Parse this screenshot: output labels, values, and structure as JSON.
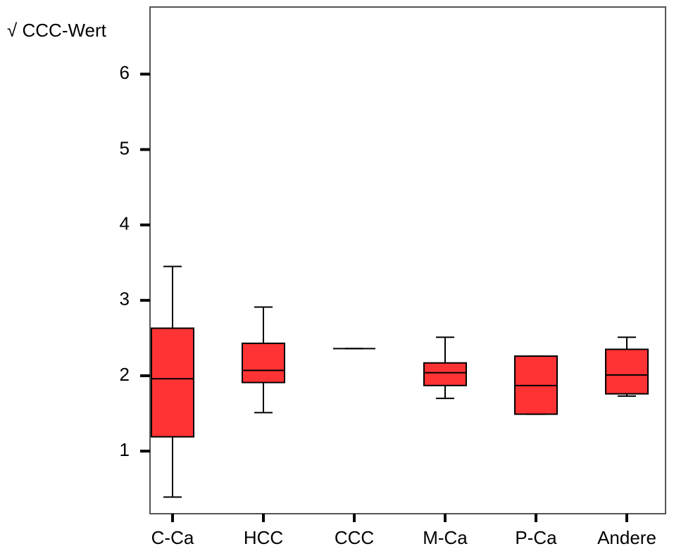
{
  "chart_data": {
    "type": "box",
    "y_label": "√ CCC-Wert",
    "categories": [
      "C-Ca",
      "HCC",
      "CCC",
      "M-Ca",
      "P-Ca",
      "Andere"
    ],
    "min": [
      0.39,
      1.51,
      2.36,
      1.7,
      1.49,
      1.73
    ],
    "q1": [
      1.19,
      1.91,
      2.36,
      1.87,
      1.49,
      1.76
    ],
    "median": [
      1.96,
      2.07,
      2.36,
      2.04,
      1.87,
      2.01
    ],
    "q3": [
      2.63,
      2.43,
      2.36,
      2.17,
      2.26,
      2.35
    ],
    "max": [
      3.45,
      2.91,
      2.36,
      2.51,
      2.26,
      2.51
    ],
    "color": "#ff3333",
    "ylim": [
      0.17,
      6.89
    ],
    "yticks": [
      1,
      2,
      3,
      4,
      5,
      6
    ]
  }
}
